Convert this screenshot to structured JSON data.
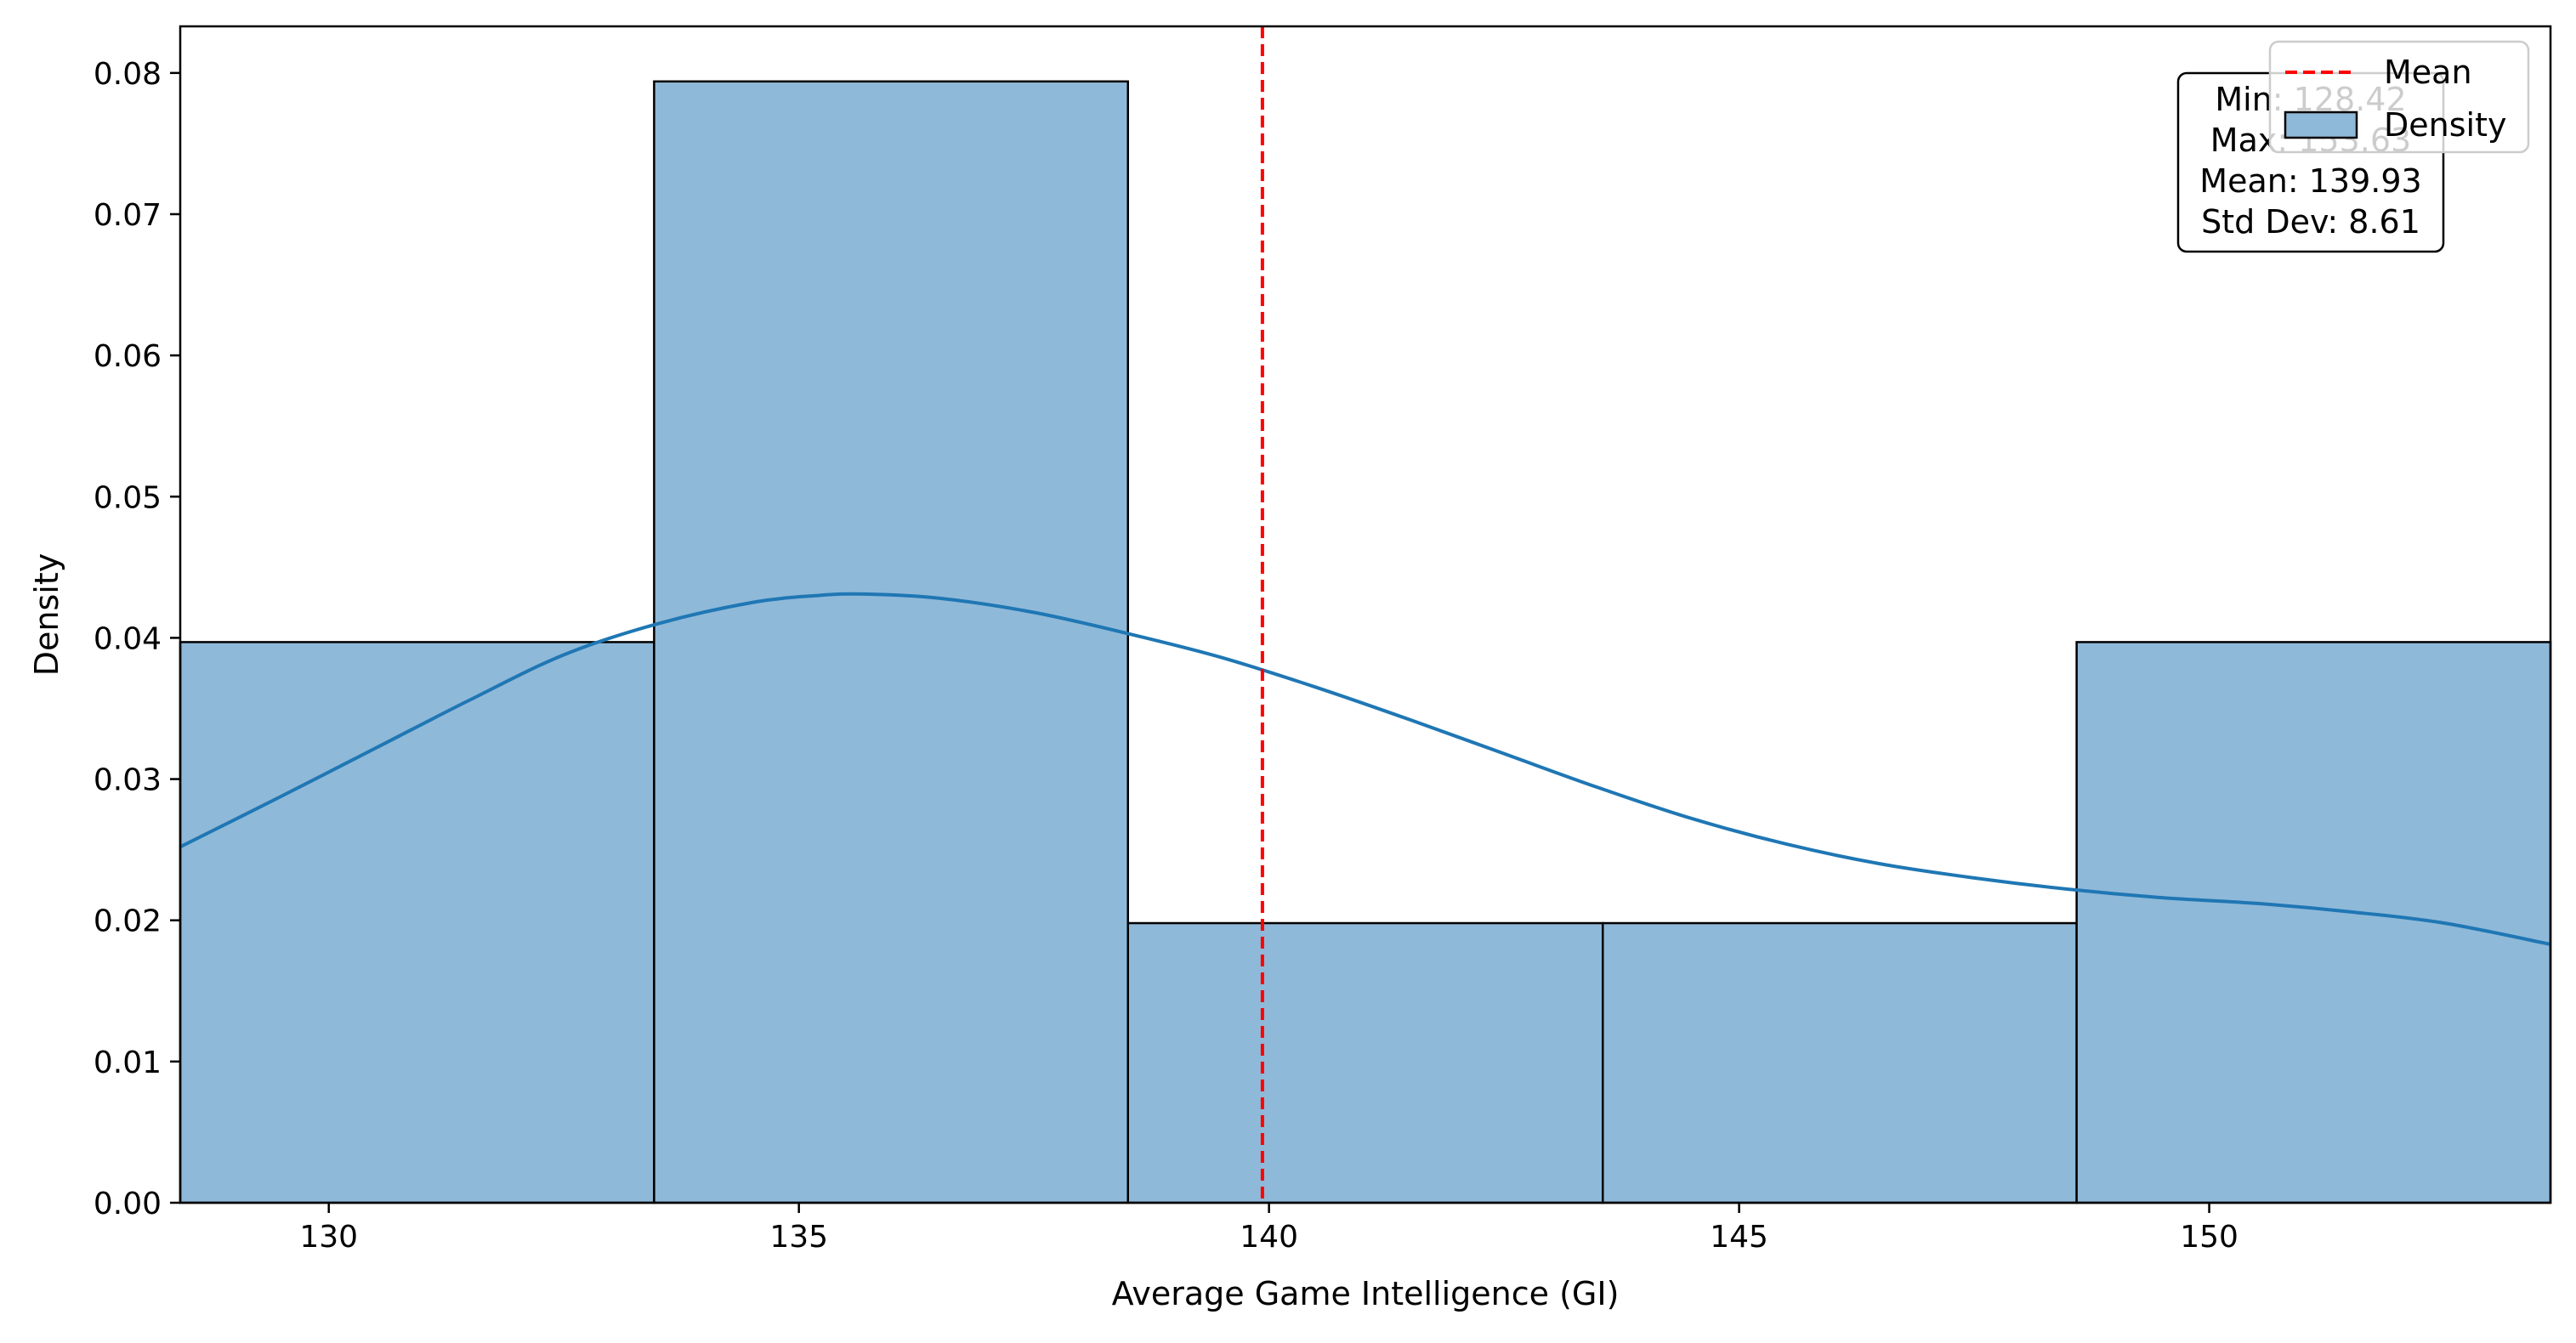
{
  "chart_data": {
    "type": "bar",
    "xlabel": "Average Game Intelligence (GI)",
    "ylabel": "Density",
    "xlim": [
      128.42,
      153.63
    ],
    "ylim": [
      0,
      0.0833
    ],
    "grid": false,
    "x_ticks": [
      "130",
      "135",
      "140",
      "145",
      "150"
    ],
    "x_tick_values": [
      130,
      135,
      140,
      145,
      150
    ],
    "y_ticks": [
      "0.00",
      "0.01",
      "0.02",
      "0.03",
      "0.04",
      "0.05",
      "0.06",
      "0.07",
      "0.08"
    ],
    "y_tick_values": [
      0,
      0.01,
      0.02,
      0.03,
      0.04,
      0.05,
      0.06,
      0.07,
      0.08
    ],
    "bins": [
      {
        "start": 128.42,
        "end": 133.46,
        "value": 0.0397
      },
      {
        "start": 133.46,
        "end": 138.5,
        "value": 0.0794
      },
      {
        "start": 138.5,
        "end": 143.55,
        "value": 0.0198
      },
      {
        "start": 143.55,
        "end": 148.59,
        "value": 0.0198
      },
      {
        "start": 148.59,
        "end": 153.63,
        "value": 0.0397
      }
    ],
    "kde": {
      "x": [
        128.42,
        129.5,
        130.5,
        131.5,
        132.5,
        133.5,
        134.5,
        135.2,
        135.7,
        136.5,
        137.5,
        138.5,
        139.5,
        140.5,
        141.5,
        142.5,
        143.5,
        144.5,
        145.5,
        146.5,
        147.5,
        148.5,
        149.5,
        150.5,
        151.5,
        152.5,
        153.63
      ],
      "y": [
        0.0252,
        0.0288,
        0.0322,
        0.0356,
        0.0388,
        0.041,
        0.0425,
        0.043,
        0.0431,
        0.0428,
        0.0418,
        0.0403,
        0.0386,
        0.0365,
        0.0342,
        0.0318,
        0.0294,
        0.0272,
        0.0254,
        0.024,
        0.023,
        0.0222,
        0.0216,
        0.0212,
        0.0206,
        0.0198,
        0.0183
      ]
    },
    "mean_line": {
      "value": 139.93,
      "label": "Mean"
    },
    "stats_box": [
      "Min: 128.42",
      "Max: 153.63",
      "Mean: 139.93",
      "Std Dev: 8.61"
    ],
    "legend": {
      "placement": "top-right",
      "entries": [
        {
          "label": "Mean",
          "style": "dashed-line"
        },
        {
          "label": "Density",
          "style": "patch"
        }
      ]
    },
    "colors": {
      "bar_fill": "#8fb9d9",
      "bar_edge": "#000000",
      "kde_line": "#1f77b4",
      "mean_line": "#ff0000"
    }
  }
}
